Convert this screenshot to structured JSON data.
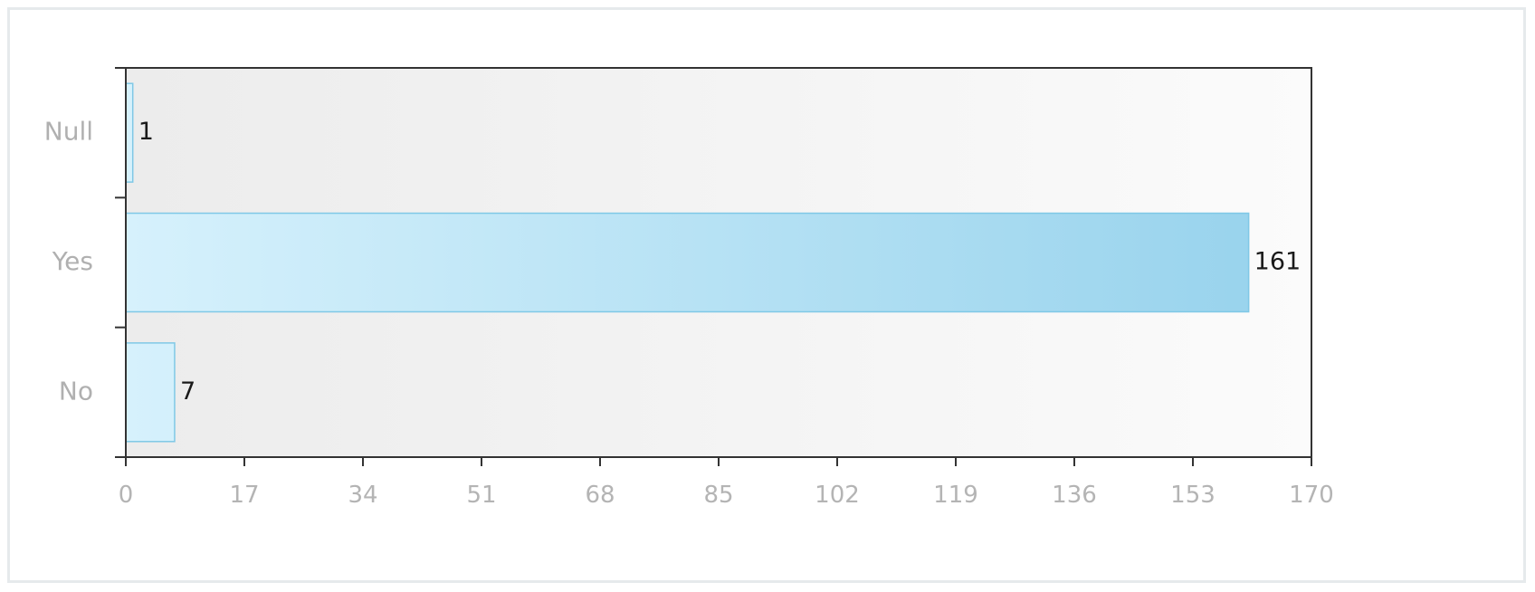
{
  "chart_data": {
    "type": "bar",
    "orientation": "horizontal",
    "categories": [
      "Null",
      "Yes",
      "No"
    ],
    "values": [
      1,
      161,
      7
    ],
    "data_labels": [
      "1",
      "161",
      "7"
    ],
    "xlim": [
      0,
      170
    ],
    "xticks": [
      "0",
      "17",
      "34",
      "51",
      "68",
      "85",
      "102",
      "119",
      "136",
      "153",
      "170"
    ],
    "title": "",
    "xlabel": "",
    "ylabel": "",
    "grid": false,
    "legend": "none",
    "colors": {
      "bar_light": "#d6f1fc",
      "bar_dark": "#96d2ec",
      "bar_border": "#7fc8e6",
      "plot_bg_left": "#ececec",
      "plot_bg_right": "#fbfbfb",
      "axis": "#333333"
    }
  }
}
